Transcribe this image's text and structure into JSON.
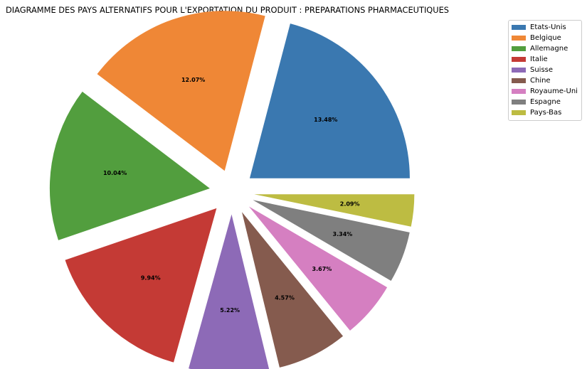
{
  "chart_data": {
    "type": "pie",
    "title": "DIAGRAMME DES PAYS ALTERNATIFS POUR L'EXPORTATION DU PRODUIT : PREPARATIONS PHARMACEUTIQUES",
    "categories": [
      "Etats-Unis",
      "Belgique",
      "Allemagne",
      "Italie",
      "Suisse",
      "Chine",
      "Royaume-Uni",
      "Espagne",
      "Pays-Bas"
    ],
    "values": [
      13.48,
      12.07,
      10.04,
      9.94,
      5.22,
      4.57,
      3.67,
      3.34,
      2.09
    ],
    "labels": [
      "13.48%",
      "12.07%",
      "10.04%",
      "9.94%",
      "5.22%",
      "4.57%",
      "3.67%",
      "3.34%",
      "2.09%"
    ],
    "colors": [
      "#3a78b0",
      "#ef8736",
      "#529e3e",
      "#c43a35",
      "#8d6ab7",
      "#855b4e",
      "#d57fc1",
      "#7f7f7f",
      "#bdbc42"
    ],
    "legend_position": "upper-right, outside"
  }
}
